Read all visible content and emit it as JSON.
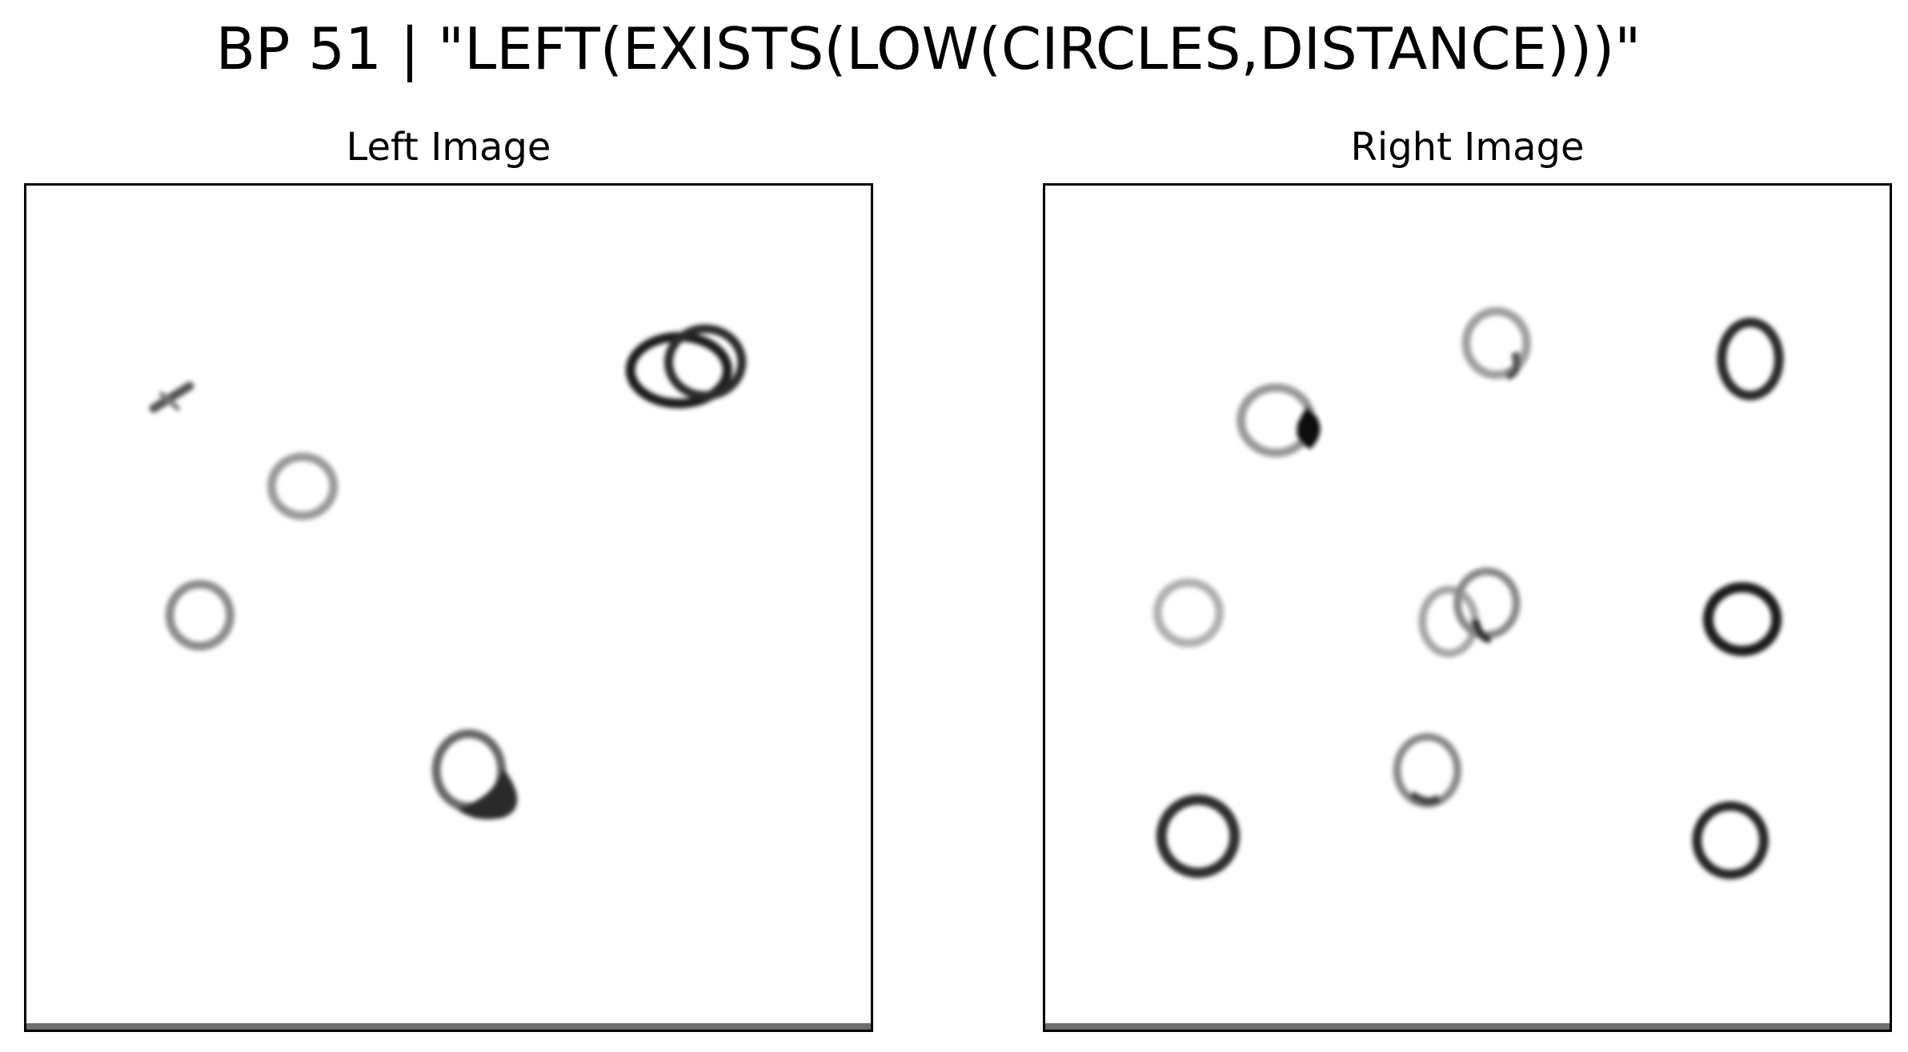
{
  "title": "BP 51 | \"LEFT(EXISTS(LOW(CIRCLES,DISTANCE)))\"",
  "panels": {
    "left": {
      "title": "Left Image"
    },
    "right": {
      "title": "Right Image"
    }
  },
  "colors": {
    "background": "#ffffff",
    "frame": "#000000",
    "ink_dark": "#1e1e1e",
    "ink_mid": "#555555",
    "ink_light": "#9a9a9a"
  }
}
